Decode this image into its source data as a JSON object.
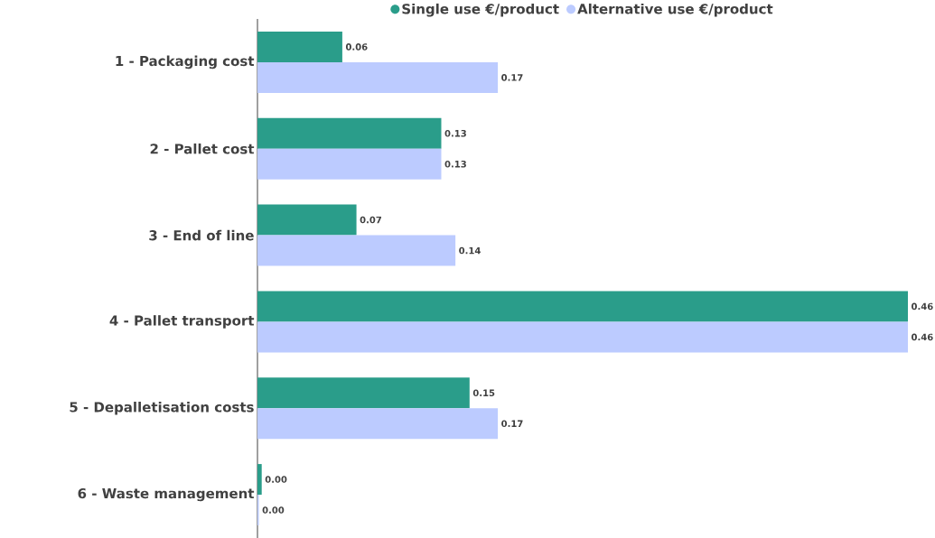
{
  "chart_data": {
    "type": "bar",
    "orientation": "horizontal",
    "categories": [
      "1 - Packaging cost",
      "2 - Pallet cost",
      "3 - End of line",
      "4 - Pallet transport",
      "5 - Depalletisation costs",
      "6 - Waste management"
    ],
    "series": [
      {
        "name": "Single use €/product",
        "color": "#2a9d8a",
        "values": [
          0.06,
          0.13,
          0.07,
          0.46,
          0.15,
          0.003
        ],
        "value_labels": [
          "0.06",
          "0.13",
          "0.07",
          "0.46",
          "0.15",
          "0.00"
        ]
      },
      {
        "name": "Alternative use  €/product",
        "color": "#bccbff",
        "values": [
          0.17,
          0.13,
          0.14,
          0.46,
          0.17,
          0.001
        ],
        "value_labels": [
          "0.17",
          "0.13",
          "0.14",
          "0.46",
          "0.17",
          "0.00"
        ]
      }
    ],
    "legend": "top",
    "marker": "circle",
    "grid": false
  }
}
